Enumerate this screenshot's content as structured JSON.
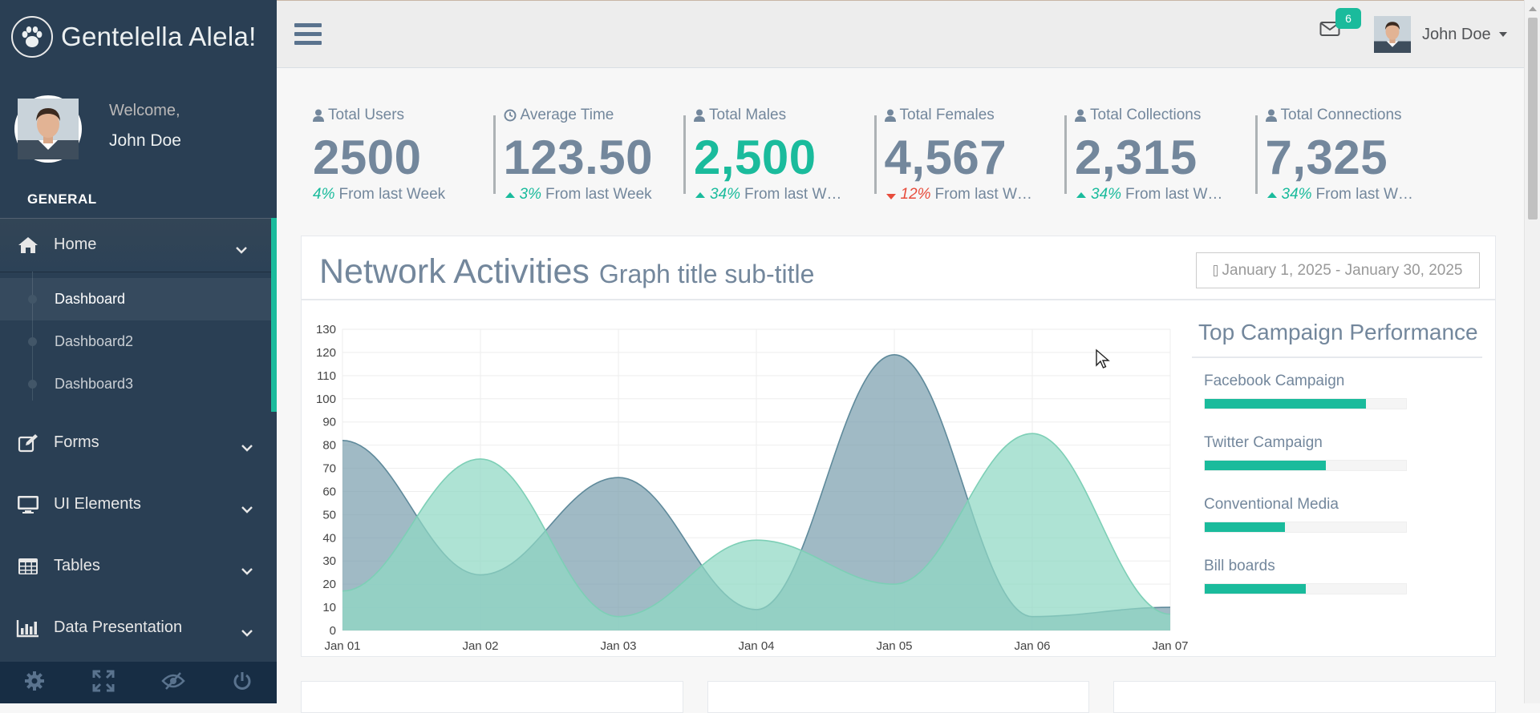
{
  "brand": {
    "title": "Gentelella Alela!",
    "icon": "paw-icon"
  },
  "profile": {
    "welcome": "Welcome,",
    "name": "John Doe"
  },
  "sidebar": {
    "section": "GENERAL",
    "items": [
      {
        "label": "Home",
        "icon": "home-icon"
      },
      {
        "label": "Forms",
        "icon": "edit-icon"
      },
      {
        "label": "UI Elements",
        "icon": "desktop-icon"
      },
      {
        "label": "Tables",
        "icon": "table-icon"
      },
      {
        "label": "Data Presentation",
        "icon": "bar-chart-icon"
      }
    ],
    "home_sub": [
      "Dashboard",
      "Dashboard2",
      "Dashboard3"
    ],
    "footer": [
      "settings-icon",
      "fullscreen-icon",
      "lock-icon",
      "logout-icon"
    ]
  },
  "topnav": {
    "mail_count": "6",
    "user": "John Doe"
  },
  "tiles": [
    {
      "label": "Total Users",
      "icon": "user-icon",
      "value": "2500",
      "pct": "4%",
      "trend": "none",
      "bottom": "From last Week"
    },
    {
      "label": "Average Time",
      "icon": "clock-icon",
      "value": "123.50",
      "pct": "3%",
      "trend": "up",
      "bottom": "From last Week"
    },
    {
      "label": "Total Males",
      "icon": "user-icon",
      "value": "2,500",
      "pct": "34%",
      "trend": "up",
      "bottom": "From last W…"
    },
    {
      "label": "Total Females",
      "icon": "user-icon",
      "value": "4,567",
      "pct": "12%",
      "trend": "down",
      "bottom": "From last W…"
    },
    {
      "label": "Total Collections",
      "icon": "user-icon",
      "value": "2,315",
      "pct": "34%",
      "trend": "up",
      "bottom": "From last W…"
    },
    {
      "label": "Total Connections",
      "icon": "user-icon",
      "value": "7,325",
      "pct": "34%",
      "trend": "up",
      "bottom": "From last W…"
    }
  ],
  "panel": {
    "title": "Network Activities",
    "subtitle": "Graph title sub-title",
    "daterange": "January 1, 2025 - January 30, 2025"
  },
  "campaign": {
    "title": "Top Campaign Performance",
    "items": [
      {
        "label": "Facebook Campaign",
        "value": 0.8
      },
      {
        "label": "Twitter Campaign",
        "value": 0.6
      },
      {
        "label": "Conventional Media",
        "value": 0.4
      },
      {
        "label": "Bill boards",
        "value": 0.5
      }
    ]
  },
  "colors": {
    "sidebar": "#2A3F54",
    "accent": "#1ABB9C",
    "series_dark": "#7CA0AE",
    "series_light": "#8FD8C4"
  },
  "chart_data": {
    "type": "area",
    "x": [
      "Jan 01",
      "Jan 02",
      "Jan 03",
      "Jan 04",
      "Jan 05",
      "Jan 06",
      "Jan 07"
    ],
    "ylim": [
      0,
      130
    ],
    "yticks": [
      0,
      10,
      20,
      30,
      40,
      50,
      60,
      70,
      80,
      90,
      100,
      110,
      120,
      130
    ],
    "series": [
      {
        "values": [
          82,
          24,
          66,
          9,
          119,
          6,
          10
        ],
        "color": "#7CA0AE"
      },
      {
        "values": [
          17,
          74,
          6,
          39,
          20,
          85,
          7
        ],
        "color": "#8FD8C4"
      }
    ],
    "grid": true
  }
}
